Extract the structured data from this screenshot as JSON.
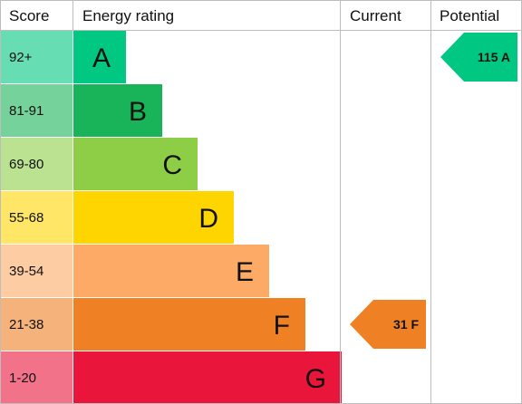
{
  "header": {
    "score": "Score",
    "rating": "Energy rating",
    "current": "Current",
    "potential": "Potential"
  },
  "chart_data": {
    "type": "bar",
    "categories": [
      "A",
      "B",
      "C",
      "D",
      "E",
      "F",
      "G"
    ],
    "score_ranges": [
      "92+",
      "81-91",
      "69-80",
      "55-68",
      "39-54",
      "21-38",
      "1-20"
    ],
    "bar_colors": [
      "#00c781",
      "#19b459",
      "#8dce46",
      "#ffd500",
      "#fcaa65",
      "#ef8023",
      "#e9153b"
    ],
    "score_cell_colors": [
      "#66ddb3",
      "#75d29b",
      "#bbe290",
      "#ffe666",
      "#fdcca3",
      "#f5b37b",
      "#f27389"
    ],
    "current": {
      "value": 31,
      "band": "F",
      "label": "31 F",
      "color": "#ef8023"
    },
    "potential": {
      "value": 115,
      "band": "A",
      "label": "115 A",
      "color": "#00c781"
    }
  }
}
